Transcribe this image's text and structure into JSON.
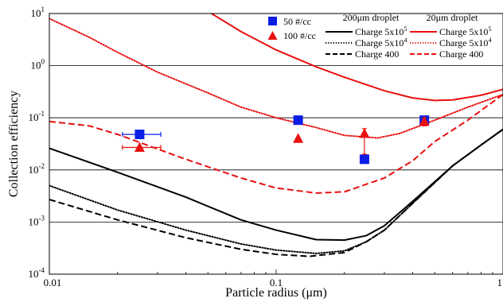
{
  "chart_data": {
    "type": "scatter",
    "xlabel": "Particle radius (μm)",
    "ylabel": "Collection efficiency",
    "x_scale": "log",
    "y_scale": "log",
    "xlim": [
      0.01,
      1
    ],
    "ylim": [
      0.0001,
      10
    ],
    "x_ticks": [
      {
        "value": 0.01,
        "label": "0.01"
      },
      {
        "value": 0.1,
        "label": "0.1"
      },
      {
        "value": 1,
        "label": "1"
      }
    ],
    "y_ticks": [
      {
        "value": 10,
        "base": "10",
        "exp": "1"
      },
      {
        "value": 1,
        "base": "10",
        "exp": "0"
      },
      {
        "value": 0.1,
        "base": "10",
        "exp": "-1"
      },
      {
        "value": 0.01,
        "base": "10",
        "exp": "-2"
      },
      {
        "value": 0.001,
        "base": "10",
        "exp": "-3"
      },
      {
        "value": 0.0001,
        "base": "10",
        "exp": "-4"
      }
    ],
    "grid": "horizontal",
    "legend_markers": [
      {
        "label": "50 #/cc",
        "marker": "square",
        "color": "#0a1de6"
      },
      {
        "label": "100 #/cc",
        "marker": "triangle",
        "color": "#e81010"
      }
    ],
    "legend_lines": [
      {
        "group": "200μm droplet",
        "label": "Charge 5x10",
        "sup": "5",
        "color": "#000000",
        "dash": "solid"
      },
      {
        "group": "200μm droplet",
        "label": "Charge 5x10",
        "sup": "4",
        "color": "#000000",
        "dash": "dotted"
      },
      {
        "group": "200μm droplet",
        "label": "Charge 400",
        "sup": "",
        "color": "#000000",
        "dash": "dashed"
      },
      {
        "group": "20μm droplet",
        "label": "Charge 5x10",
        "sup": "5",
        "color": "#e81010",
        "dash": "solid"
      },
      {
        "group": "20μm droplet",
        "label": "Charge 5x10",
        "sup": "4",
        "color": "#e81010",
        "dash": "dotted"
      },
      {
        "group": "20μm droplet",
        "label": "Charge 400",
        "sup": "",
        "color": "#e81010",
        "dash": "dashed"
      }
    ],
    "group_titles": [
      "200μm droplet",
      "20μm droplet"
    ],
    "series": [
      {
        "name": "50 #/cc",
        "kind": "points",
        "marker": "square",
        "color": "#0a1de6",
        "points": [
          {
            "x": 0.025,
            "y": 0.048,
            "xerr": [
              0.021,
              0.031
            ]
          },
          {
            "x": 0.125,
            "y": 0.09
          },
          {
            "x": 0.245,
            "y": 0.016
          },
          {
            "x": 0.45,
            "y": 0.09
          }
        ]
      },
      {
        "name": "100 #/cc",
        "kind": "points",
        "marker": "triangle",
        "color": "#e81010",
        "points": [
          {
            "x": 0.025,
            "y": 0.027,
            "xerr": [
              0.021,
              0.031
            ]
          },
          {
            "x": 0.125,
            "y": 0.04
          },
          {
            "x": 0.245,
            "y": 0.05,
            "yerr": [
              0.02,
              0.062
            ]
          },
          {
            "x": 0.45,
            "y": 0.085,
            "yerr": [
              0.07,
              0.1
            ]
          }
        ]
      },
      {
        "name": "200μm droplet Charge 5x10^5",
        "kind": "line",
        "color": "#000000",
        "dash": "solid",
        "points": [
          [
            0.01,
            0.026
          ],
          [
            0.02,
            0.009
          ],
          [
            0.04,
            0.003
          ],
          [
            0.07,
            0.0011
          ],
          [
            0.1,
            0.0007
          ],
          [
            0.15,
            0.00046
          ],
          [
            0.2,
            0.00045
          ],
          [
            0.25,
            0.00055
          ],
          [
            0.3,
            0.00085
          ],
          [
            0.4,
            0.0025
          ],
          [
            0.6,
            0.012
          ],
          [
            0.8,
            0.03
          ],
          [
            1.0,
            0.06
          ]
        ]
      },
      {
        "name": "200μm droplet Charge 5x10^4",
        "kind": "line",
        "color": "#000000",
        "dash": "dotted",
        "points": [
          [
            0.01,
            0.005
          ],
          [
            0.02,
            0.0017
          ],
          [
            0.04,
            0.0007
          ],
          [
            0.07,
            0.00038
          ],
          [
            0.1,
            0.00029
          ],
          [
            0.15,
            0.00025
          ],
          [
            0.2,
            0.00028
          ],
          [
            0.25,
            0.00042
          ],
          [
            0.3,
            0.0007
          ],
          [
            0.4,
            0.0023
          ],
          [
            0.6,
            0.012
          ],
          [
            0.8,
            0.03
          ],
          [
            1.0,
            0.06
          ]
        ]
      },
      {
        "name": "200μm droplet Charge 400",
        "kind": "line",
        "color": "#000000",
        "dash": "dashed",
        "points": [
          [
            0.01,
            0.0027
          ],
          [
            0.02,
            0.0011
          ],
          [
            0.04,
            0.0005
          ],
          [
            0.07,
            0.0003
          ],
          [
            0.1,
            0.00024
          ],
          [
            0.14,
            0.00022
          ],
          [
            0.2,
            0.00026
          ],
          [
            0.25,
            0.00042
          ],
          [
            0.3,
            0.0007
          ],
          [
            0.4,
            0.0023
          ],
          [
            0.6,
            0.012
          ],
          [
            0.8,
            0.03
          ],
          [
            1.0,
            0.06
          ]
        ]
      },
      {
        "name": "20μm droplet Charge 5x10^5",
        "kind": "line",
        "color": "#e81010",
        "dash": "solid",
        "points": [
          [
            0.05,
            11.0
          ],
          [
            0.07,
            4.5
          ],
          [
            0.1,
            2.0
          ],
          [
            0.15,
            0.95
          ],
          [
            0.2,
            0.6
          ],
          [
            0.3,
            0.33
          ],
          [
            0.4,
            0.24
          ],
          [
            0.5,
            0.215
          ],
          [
            0.6,
            0.22
          ],
          [
            0.8,
            0.27
          ],
          [
            1.0,
            0.35
          ]
        ]
      },
      {
        "name": "20μm droplet Charge 5x10^4",
        "kind": "line",
        "color": "#e81010",
        "dash": "dotted",
        "points": [
          [
            0.01,
            8.0
          ],
          [
            0.015,
            3.5
          ],
          [
            0.02,
            1.8
          ],
          [
            0.03,
            0.75
          ],
          [
            0.05,
            0.3
          ],
          [
            0.07,
            0.16
          ],
          [
            0.1,
            0.1
          ],
          [
            0.15,
            0.065
          ],
          [
            0.2,
            0.046
          ],
          [
            0.28,
            0.041
          ],
          [
            0.35,
            0.05
          ],
          [
            0.5,
            0.09
          ],
          [
            0.7,
            0.16
          ],
          [
            1.0,
            0.28
          ]
        ]
      },
      {
        "name": "20μm droplet Charge 400",
        "kind": "line",
        "color": "#e81010",
        "dash": "dashed",
        "points": [
          [
            0.01,
            0.085
          ],
          [
            0.015,
            0.07
          ],
          [
            0.02,
            0.048
          ],
          [
            0.04,
            0.016
          ],
          [
            0.07,
            0.007
          ],
          [
            0.1,
            0.0045
          ],
          [
            0.15,
            0.0036
          ],
          [
            0.2,
            0.0038
          ],
          [
            0.3,
            0.007
          ],
          [
            0.4,
            0.015
          ],
          [
            0.5,
            0.035
          ],
          [
            0.7,
            0.09
          ],
          [
            1.0,
            0.28
          ]
        ]
      }
    ]
  }
}
